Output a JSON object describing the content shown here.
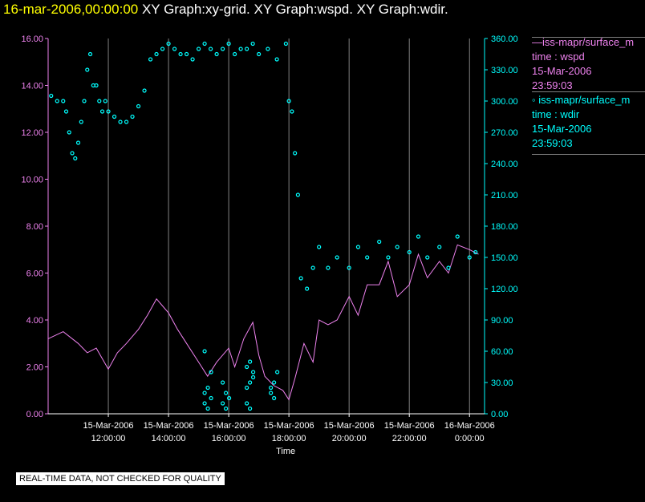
{
  "header": {
    "date": "16-mar-2006,00:00:00",
    "graphs": "XY Graph:xy-grid.  XY Graph:wspd.  XY Graph:wdir."
  },
  "legend": [
    {
      "line1": "—iss-mapr/surface_m",
      "line2": "time : wspd",
      "line3": "15-Mar-2006",
      "line4": "23:59:03",
      "color": "#ee82ee"
    },
    {
      "line1": "◦ iss-mapr/surface_m",
      "line2": "time : wdir",
      "line3": "15-Mar-2006",
      "line4": "23:59:03",
      "color": "#00ffff"
    }
  ],
  "footer": "REAL-TIME DATA, NOT CHECKED FOR QUALITY",
  "chart_data": {
    "type": "line+scatter",
    "xlabel": "Time",
    "x_range_hours": [
      10.0,
      24.5
    ],
    "x_ticks": [
      {
        "hour": 12,
        "date": "15-Mar-2006",
        "time": "12:00:00"
      },
      {
        "hour": 14,
        "date": "15-Mar-2006",
        "time": "14:00:00"
      },
      {
        "hour": 16,
        "date": "15-Mar-2006",
        "time": "16:00:00"
      },
      {
        "hour": 18,
        "date": "15-Mar-2006",
        "time": "18:00:00"
      },
      {
        "hour": 20,
        "date": "15-Mar-2006",
        "time": "20:00:00"
      },
      {
        "hour": 22,
        "date": "15-Mar-2006",
        "time": "22:00:00"
      },
      {
        "hour": 24,
        "date": "16-Mar-2006",
        "time": "0:00:00"
      }
    ],
    "left_axis": {
      "name": "wspd",
      "range": [
        0,
        16
      ],
      "ticks": [
        "0.00",
        "2.00",
        "4.00",
        "6.00",
        "8.00",
        "10.00",
        "12.00",
        "14.00",
        "16.00"
      ],
      "color": "#ee82ee"
    },
    "right_axis": {
      "name": "wdir",
      "range": [
        0,
        360
      ],
      "ticks": [
        "0.00",
        "30.00",
        "60.00",
        "90.00",
        "120.00",
        "150.00",
        "180.00",
        "210.00",
        "240.00",
        "270.00",
        "300.00",
        "330.00",
        "360.00"
      ],
      "color": "#00ffff"
    },
    "series": [
      {
        "name": "wspd",
        "style": "line",
        "color": "#ee82ee",
        "x": [
          10.0,
          10.5,
          11.0,
          11.3,
          11.6,
          12.0,
          12.3,
          12.6,
          13.0,
          13.3,
          13.6,
          13.8,
          14.0,
          14.3,
          14.6,
          15.0,
          15.3,
          15.6,
          16.0,
          16.2,
          16.5,
          16.8,
          17.0,
          17.2,
          17.5,
          17.8,
          18.0,
          18.2,
          18.5,
          18.8,
          19.0,
          19.3,
          19.6,
          20.0,
          20.3,
          20.6,
          21.0,
          21.3,
          21.6,
          22.0,
          22.3,
          22.6,
          23.0,
          23.3,
          23.6,
          24.0,
          24.3
        ],
        "values": [
          3.2,
          3.5,
          3.0,
          2.6,
          2.8,
          1.9,
          2.6,
          3.0,
          3.6,
          4.2,
          4.9,
          4.6,
          4.3,
          3.6,
          3.0,
          2.2,
          1.6,
          2.2,
          2.8,
          2.0,
          3.2,
          3.9,
          2.5,
          1.6,
          1.2,
          1.0,
          0.6,
          1.5,
          3.0,
          2.2,
          4.0,
          3.8,
          4.0,
          5.0,
          4.2,
          5.5,
          5.5,
          6.5,
          5.0,
          5.5,
          6.8,
          5.8,
          6.5,
          6.0,
          7.2,
          7.0,
          6.8
        ]
      },
      {
        "name": "wdir",
        "style": "scatter",
        "color": "#00ffff",
        "x": [
          10.1,
          10.3,
          10.5,
          10.6,
          10.7,
          10.8,
          10.9,
          11.0,
          11.1,
          11.2,
          11.3,
          11.4,
          11.5,
          11.6,
          11.7,
          11.8,
          11.9,
          12.0,
          12.2,
          12.4,
          12.6,
          12.8,
          13.0,
          13.2,
          13.4,
          13.6,
          13.8,
          14.0,
          14.2,
          14.4,
          14.6,
          14.8,
          15.0,
          15.2,
          15.4,
          15.6,
          15.8,
          16.0,
          16.2,
          16.4,
          16.6,
          16.8,
          17.0,
          17.3,
          17.6,
          17.9,
          18.0,
          18.1,
          18.2,
          18.3,
          18.4,
          18.6,
          18.8,
          19.0,
          19.3,
          19.6,
          20.0,
          20.3,
          20.6,
          21.0,
          21.3,
          21.6,
          22.0,
          22.3,
          22.6,
          23.0,
          23.3,
          23.6,
          24.0,
          24.2
        ],
        "values": [
          305,
          300,
          300,
          290,
          270,
          250,
          245,
          260,
          280,
          300,
          330,
          345,
          315,
          315,
          300,
          290,
          300,
          290,
          285,
          280,
          280,
          285,
          295,
          310,
          340,
          345,
          350,
          355,
          350,
          345,
          345,
          340,
          350,
          355,
          350,
          345,
          350,
          355,
          345,
          350,
          350,
          355,
          345,
          350,
          340,
          355,
          300,
          290,
          250,
          210,
          130,
          120,
          140,
          160,
          140,
          150,
          140,
          160,
          150,
          165,
          150,
          160,
          155,
          170,
          150,
          160,
          140,
          170,
          150,
          155
        ]
      }
    ],
    "wdir_scatter_offaxis": [
      {
        "x": 15.2,
        "values": [
          10,
          5,
          15,
          20,
          25,
          40,
          60
        ]
      },
      {
        "x": 15.8,
        "values": [
          30,
          20,
          15,
          10,
          5
        ]
      },
      {
        "x": 16.6,
        "values": [
          25,
          30,
          40,
          45,
          50,
          35,
          10,
          5
        ]
      },
      {
        "x": 17.4,
        "values": [
          20,
          30,
          40,
          25,
          15
        ]
      }
    ]
  }
}
